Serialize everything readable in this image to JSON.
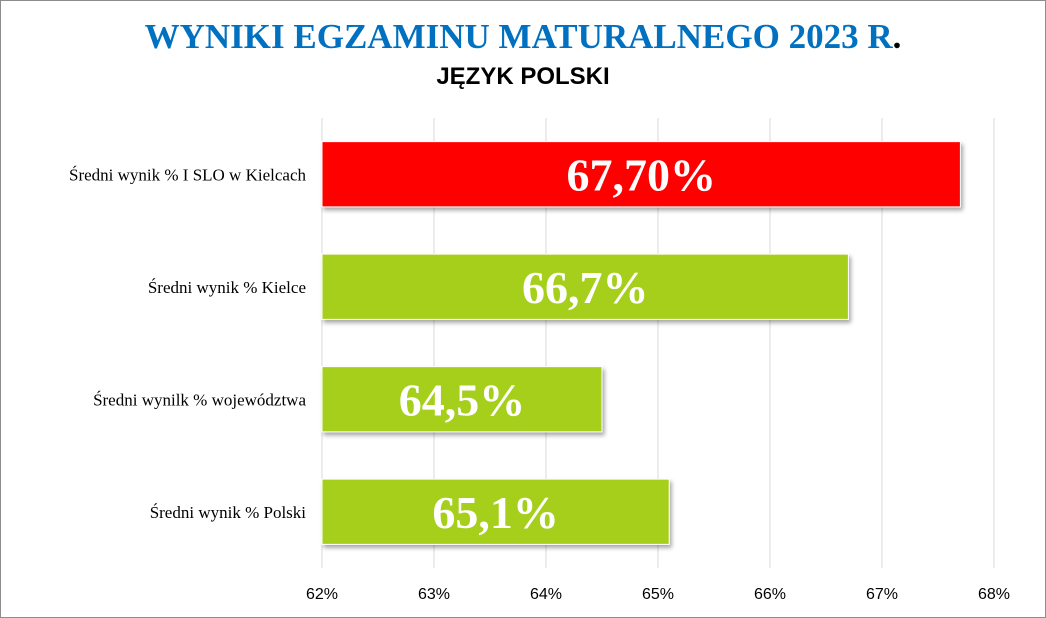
{
  "title": {
    "main": "WYNIKI EGZAMINU MATURALNEGO 2023 R",
    "main_suffix": ".",
    "subtitle": "JĘZYK POLSKI"
  },
  "chart_data": {
    "type": "bar",
    "orientation": "horizontal",
    "title": "WYNIKI EGZAMINU MATURALNEGO 2023 R.",
    "subtitle": "JĘZYK POLSKI",
    "categories": [
      "Średni wynik % I SLO w Kielcach",
      "Średni wynik % Kielce",
      "Średni wynilk % województwa",
      "Średni wynik % Polski"
    ],
    "values": [
      67.7,
      66.7,
      64.5,
      65.1
    ],
    "data_labels": [
      "67,70%",
      "66,7%",
      "64,5%",
      "65,1%"
    ],
    "bar_colors": [
      "#ff0000",
      "#a6cf1f",
      "#a6cf1f",
      "#a6cf1f"
    ],
    "xlim": [
      62,
      68
    ],
    "xticks": [
      62,
      63,
      64,
      65,
      66,
      67,
      68
    ],
    "xtick_labels": [
      "62%",
      "63%",
      "64%",
      "65%",
      "66%",
      "67%",
      "68%"
    ],
    "grid": true,
    "legend": "none"
  },
  "colors": {
    "title_blue": "#0070c0",
    "highlight_red": "#ff0000",
    "bar_green": "#a6cf1f",
    "gridline": "#d9d9d9"
  }
}
